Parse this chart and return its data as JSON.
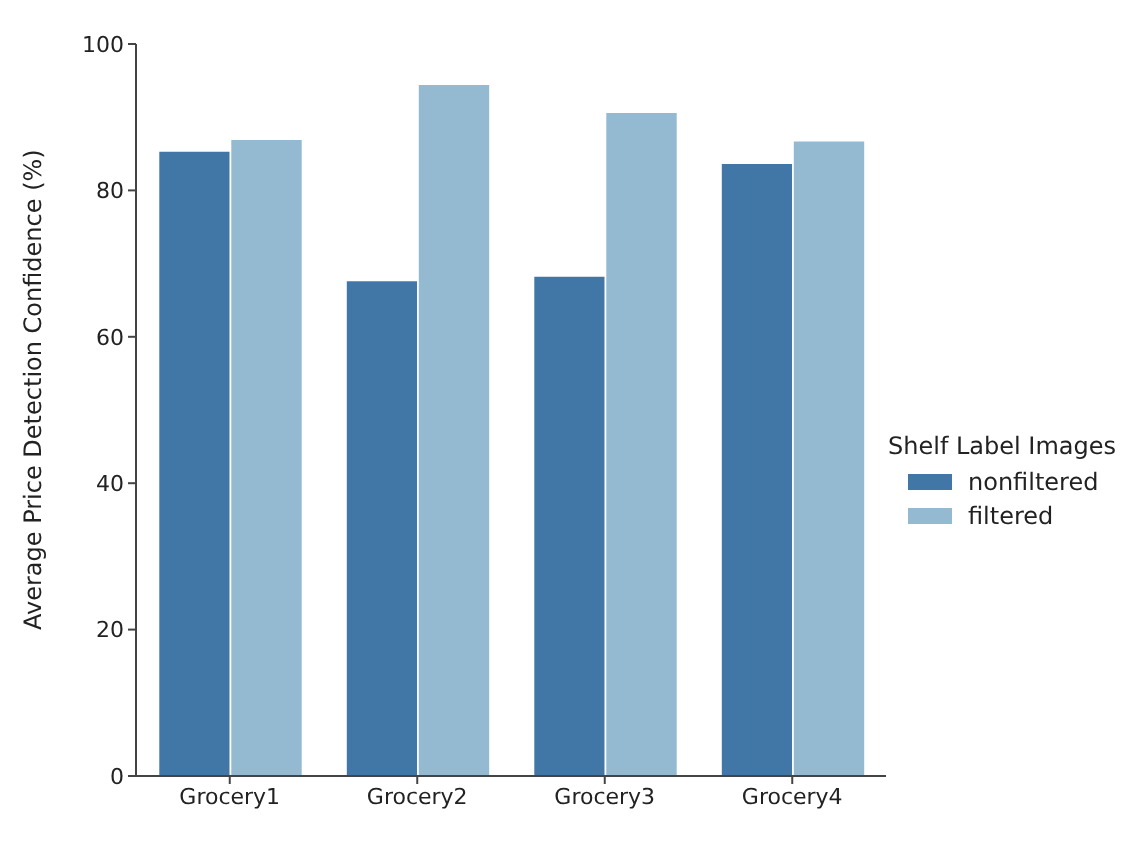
{
  "chart_data": {
    "type": "bar",
    "ylabel": "Average Price Detection Confidence (%)",
    "legend_title": "Shelf Label Images",
    "categories": [
      "Grocery1",
      "Grocery2",
      "Grocery3",
      "Grocery4"
    ],
    "series": [
      {
        "name": "nonfiltered",
        "color": "#4177a6",
        "values": [
          85.4,
          67.7,
          68.3,
          83.7
        ]
      },
      {
        "name": "filtered",
        "color": "#93bad0",
        "values": [
          87.0,
          94.5,
          90.7,
          86.8
        ]
      }
    ],
    "ylim": [
      0,
      100
    ],
    "yticks": [
      0,
      20,
      40,
      60,
      80,
      100
    ],
    "grid": false,
    "legend": "right"
  }
}
